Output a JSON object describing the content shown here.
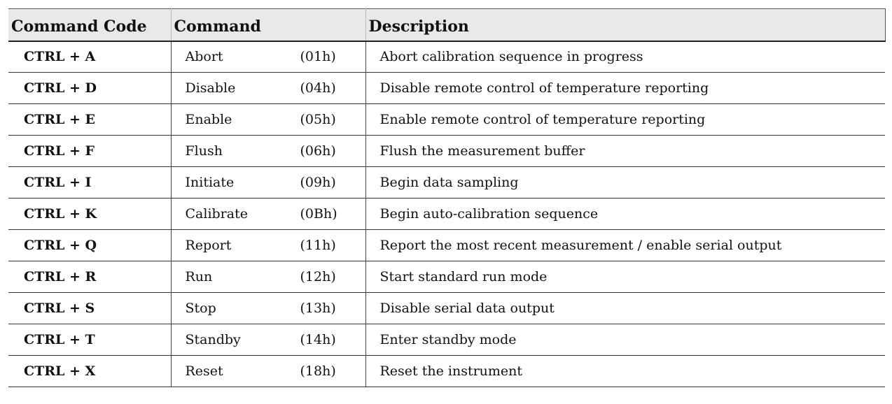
{
  "table": {
    "headers": {
      "code": "Command Code",
      "command": "Command",
      "description": "Description"
    },
    "rows": [
      {
        "code": "CTRL + A",
        "name": "Abort",
        "hex": "(01h)",
        "description": "Abort calibration sequence in progress"
      },
      {
        "code": "CTRL + D",
        "name": "Disable",
        "hex": "(04h)",
        "description": "Disable remote control of temperature reporting"
      },
      {
        "code": "CTRL + E",
        "name": "Enable",
        "hex": "(05h)",
        "description": "Enable remote control of temperature reporting"
      },
      {
        "code": "CTRL + F",
        "name": "Flush",
        "hex": "(06h)",
        "description": "Flush the measurement buffer"
      },
      {
        "code": "CTRL + I",
        "name": "Initiate",
        "hex": "(09h)",
        "description": "Begin data sampling"
      },
      {
        "code": "CTRL + K",
        "name": "Calibrate",
        "hex": "(0Bh)",
        "description": "Begin auto-calibration sequence"
      },
      {
        "code": "CTRL + Q",
        "name": "Report",
        "hex": "(11h)",
        "description": "Report the most recent measurement / enable serial output"
      },
      {
        "code": "CTRL + R",
        "name": "Run",
        "hex": "(12h)",
        "description": "Start standard run mode"
      },
      {
        "code": "CTRL + S",
        "name": "Stop",
        "hex": "(13h)",
        "description": "Disable serial data output"
      },
      {
        "code": "CTRL + T",
        "name": "Standby",
        "hex": "(14h)",
        "description": "Enter standby mode"
      },
      {
        "code": "CTRL + X",
        "name": "Reset",
        "hex": "(18h)",
        "description": "Reset the instrument"
      }
    ]
  }
}
